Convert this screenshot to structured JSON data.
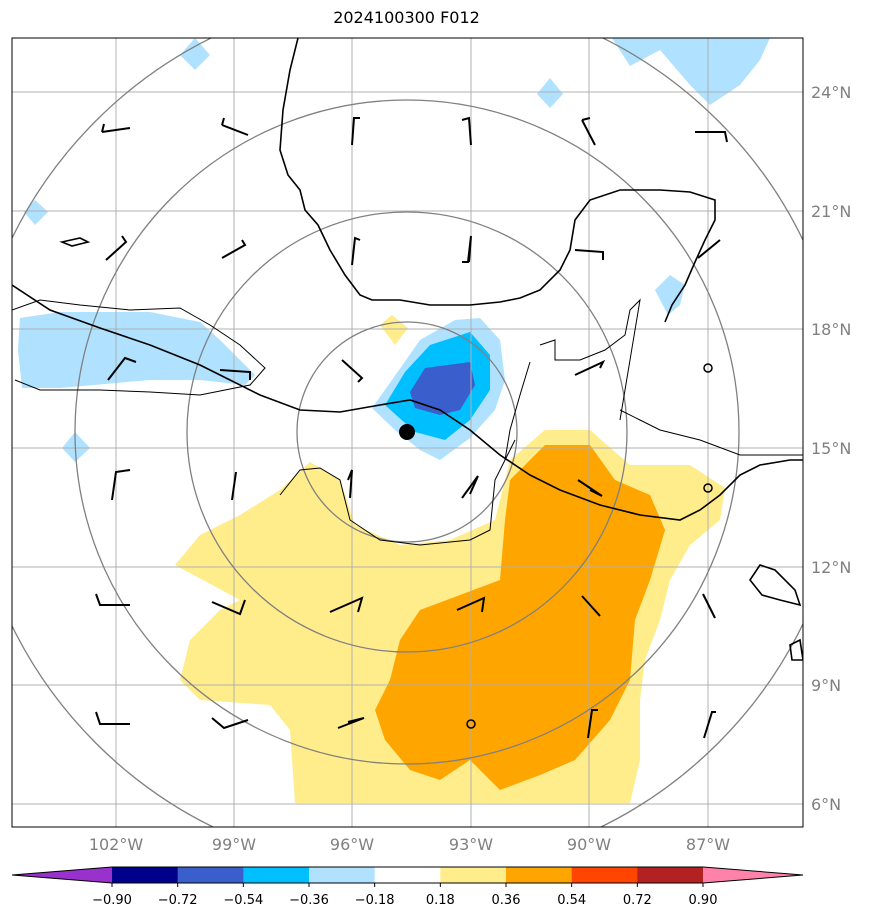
{
  "title": "2024100300 F012",
  "lat_labels": [
    "24°N",
    "21°N",
    "18°N",
    "15°N",
    "12°N",
    "9°N",
    "6°N"
  ],
  "lon_labels": [
    "102°W",
    "99°W",
    "96°W",
    "93°W",
    "90°W",
    "87°W"
  ],
  "colorbar": {
    "ticks": [
      "−0.90",
      "−0.72",
      "−0.54",
      "−0.36",
      "−0.18",
      "0.18",
      "0.36",
      "0.54",
      "0.72",
      "0.90"
    ],
    "colors": [
      "#9932cc",
      "#00008b",
      "#3a5fcd",
      "#00bfff",
      "#b0e2ff",
      "#ffffff",
      "#ffec8b",
      "#ffa500",
      "#ff4500",
      "#b22222",
      "#ff82ab"
    ]
  },
  "fill_colors": {
    "light_blue": "#b0e2ff",
    "blue": "#00bfff",
    "dark_blue": "#3a5fcd",
    "light_yellow": "#ffec8b",
    "orange": "#ffa500"
  }
}
